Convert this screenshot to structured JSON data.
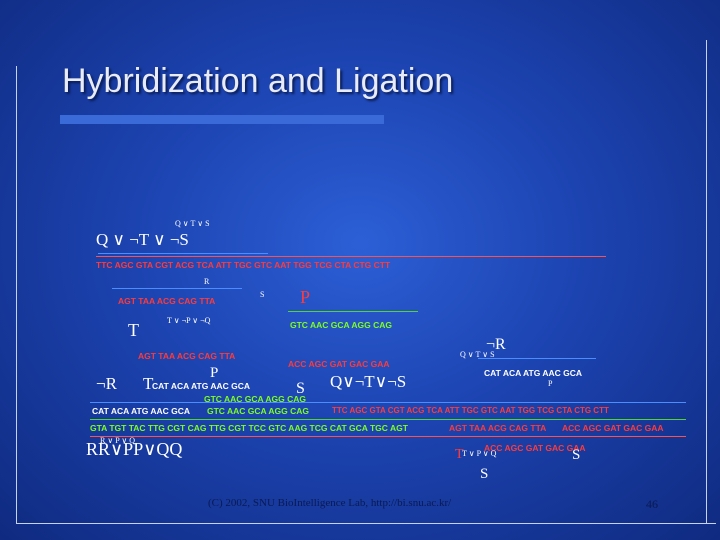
{
  "title": "Hybridization and Ligation",
  "labels": {
    "expr_main": "Q ∨ ¬T ∨ ¬S",
    "expr_small_top": "Q ∨  T ∨  S",
    "expr_mid_right": "Q ∨  T ∨  S",
    "p_label": "P",
    "t_label": "T",
    "notr_right": "¬R",
    "notr_left": "¬R",
    "t_label2": "T",
    "p_label2": "P",
    "s_label": "S",
    "q_expr": "Q∨¬T∨¬S",
    "rr_expr": "RR∨PP∨QQ",
    "t_bottom": "T",
    "s_bottom": "S",
    "s_bottom2": "S",
    "small_r1": "R",
    "small_s1": "S",
    "small_expr_tq": "T ∨ ¬P ∨ ¬Q",
    "small_p1": "P",
    "small_rq": "R ∨  P ∨  Q",
    "small_tpq": "T ∨  P ∨  Q"
  },
  "sequences": {
    "s1": "TTC AGC GTA CGT ACG TCA ATT TGC GTC AAT TGG TCG CTA CTG CTT",
    "s2": "AGT TAA ACG CAG TTA",
    "s3": "GTC AAC GCA AGG CAG",
    "s4": "AGT TAA ACG CAG TTA",
    "s5": "ACC AGC GAT GAC GAA",
    "s6": "CAT ACA ATG AAC GCA",
    "s7": "CAT ACA ATG AAC GCA",
    "s8": "GTC AAC GCA AGG CAG",
    "s9": "CAT ACA ATG AAC GCA",
    "s10": "GTC AAC GCA AGG CAG",
    "s11": "TTC AGC GTA CGT ACG TCA ATT TGC GTC AAT TGG TCG CTA CTG CTT",
    "s12": "GTA TGT TAC TTG CGT CAG TTG CGT TCC GTC AAG TCG CAT GCA TGC AGT",
    "s13": "AGT TAA ACG CAG TTA",
    "s14": "ACC AGC GAT GAC GAA",
    "s15": "ACC AGC GAT GAC GAA"
  },
  "footer": "(C) 2002, SNU BioIntelligence Lab, http://bi.snu.ac.kr/",
  "page_number": "46"
}
